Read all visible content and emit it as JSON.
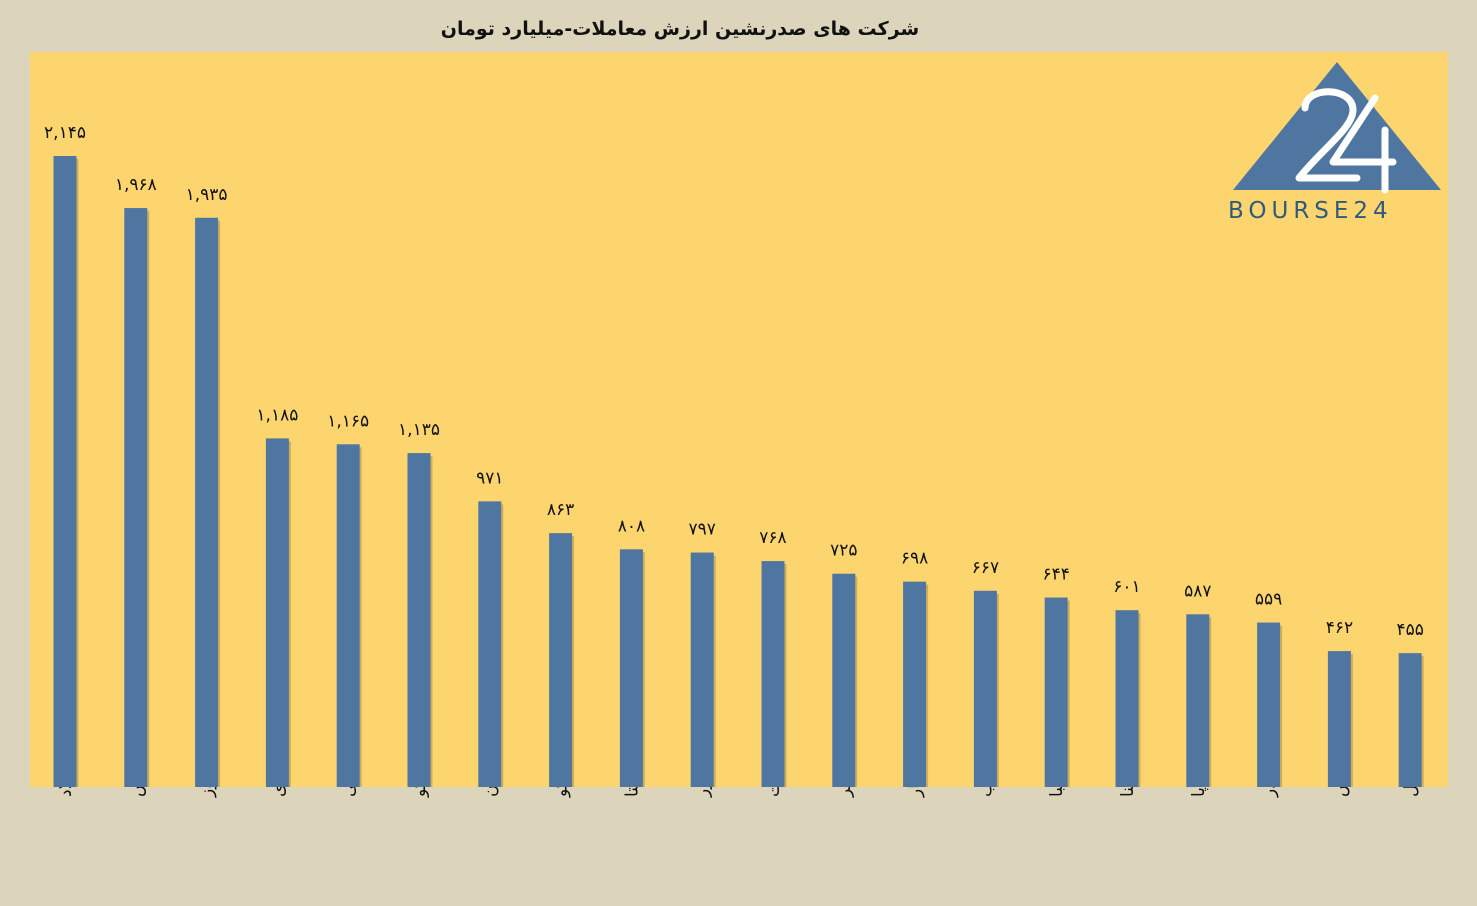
{
  "chart_data": {
    "type": "bar",
    "title": "شرکت های صدرنشین ارزش معاملات-میلیارد تومان",
    "categories": [
      "فولاد",
      "شپدیس",
      "فخوز",
      "نوری",
      "فملی",
      "تاصیکو",
      "تابان",
      "تاپیکو",
      "شستا",
      "فزر",
      "وبملت",
      "وکغدیر",
      "وپاسار",
      "ذوب",
      "صبا",
      "شپنا",
      "وساپا",
      "شبندر",
      "وپارس",
      "منجیل"
    ],
    "values": [
      2145,
      1968,
      1935,
      1185,
      1165,
      1135,
      971,
      863,
      808,
      797,
      768,
      725,
      698,
      667,
      644,
      601,
      587,
      559,
      462,
      455
    ],
    "value_labels": [
      "۲,۱۴۵",
      "۱,۹۶۸",
      "۱,۹۳۵",
      "۱,۱۸۵",
      "۱,۱۶۵",
      "۱,۱۳۵",
      "۹۷۱",
      "۸۶۳",
      "۸۰۸",
      "۷۹۷",
      "۷۶۸",
      "۷۲۵",
      "۶۹۸",
      "۶۶۷",
      "۶۴۴",
      "۶۰۱",
      "۵۸۷",
      "۵۵۹",
      "۴۶۲",
      "۴۵۵"
    ],
    "ylim": [
      0,
      2500
    ],
    "grid": false,
    "legend": "none",
    "bar_color": "#4F76A0",
    "background_color": "#FCD56F",
    "frame_color": "#DDD4BC"
  },
  "logo": {
    "text": "BOURSE24",
    "numeral": "24",
    "color": "#4F76A0",
    "text_color": "#2F5A7E"
  }
}
